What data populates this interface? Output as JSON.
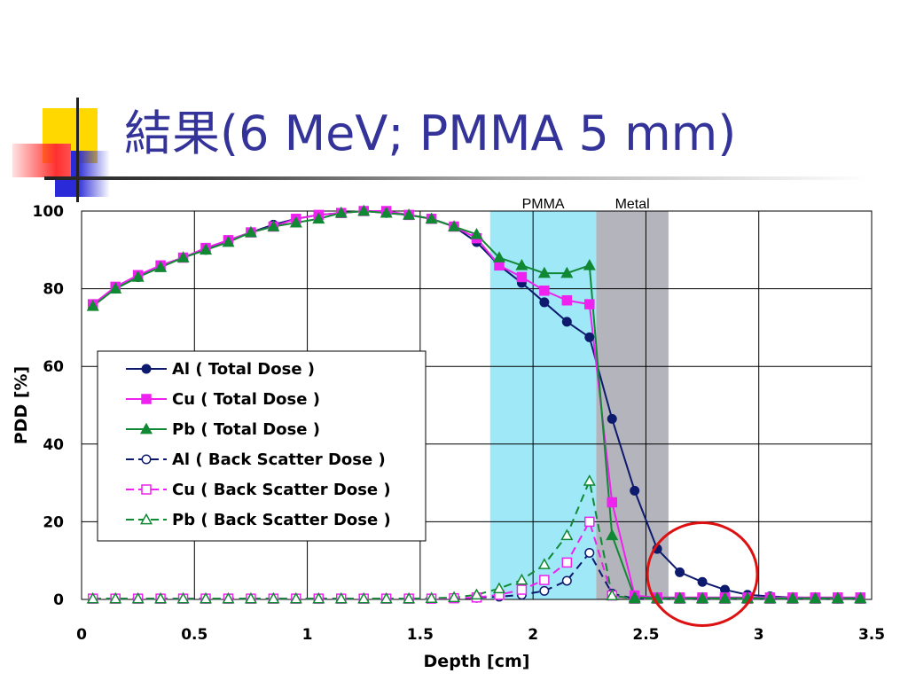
{
  "slide": {
    "title": "結果(6 MeV; PMMA 5 mm)"
  },
  "chart_data": {
    "type": "line",
    "xlabel": "Depth [cm]",
    "ylabel": "PDD [%]",
    "xlim": [
      0,
      3.5
    ],
    "ylim": [
      0,
      100
    ],
    "x_ticks": [
      "0",
      "0.5",
      "1",
      "1.5",
      "2",
      "2.5",
      "3",
      "3.5"
    ],
    "y_ticks": [
      "0",
      "20",
      "40",
      "60",
      "80",
      "100"
    ],
    "grid": true,
    "legend_position": "left-middle",
    "bands": [
      {
        "label": "PMMA",
        "x_start": 1.81,
        "x_end": 2.28,
        "color": "#9ee8f8"
      },
      {
        "label": "Metal",
        "x_start": 2.28,
        "x_end": 2.6,
        "color": "#b4b4bc"
      }
    ],
    "annotation": {
      "type": "circle",
      "color": "#dd1111"
    },
    "series": [
      {
        "name": "Al ( Total Dose )",
        "color": "#0d1a6e",
        "marker": "circle",
        "filled": true,
        "dash": false,
        "x": [
          0.05,
          0.15,
          0.25,
          0.35,
          0.45,
          0.55,
          0.65,
          0.75,
          0.85,
          0.95,
          1.05,
          1.15,
          1.25,
          1.35,
          1.45,
          1.55,
          1.65,
          1.75,
          1.85,
          1.95,
          2.05,
          2.15,
          2.25,
          2.35,
          2.45,
          2.55,
          2.65,
          2.75,
          2.85,
          2.95,
          3.05,
          3.15,
          3.25,
          3.35,
          3.45
        ],
        "y": [
          76,
          80,
          83,
          86,
          88,
          90,
          92.5,
          94.5,
          96.5,
          98,
          99,
          99.5,
          100,
          99.5,
          99,
          98,
          96,
          92,
          86,
          81.5,
          76.5,
          71.5,
          67.5,
          46.5,
          28,
          13,
          7,
          4.5,
          2.5,
          1.2,
          0.8,
          0.5,
          0.4,
          0.3,
          0.3
        ]
      },
      {
        "name": "Cu ( Total Dose )",
        "color": "#ee22ee",
        "marker": "square",
        "filled": true,
        "dash": false,
        "x": [
          0.05,
          0.15,
          0.25,
          0.35,
          0.45,
          0.55,
          0.65,
          0.75,
          0.85,
          0.95,
          1.05,
          1.15,
          1.25,
          1.35,
          1.45,
          1.55,
          1.65,
          1.75,
          1.85,
          1.95,
          2.05,
          2.15,
          2.25,
          2.35,
          2.45,
          2.55,
          2.65,
          2.75,
          2.85,
          2.95,
          3.05,
          3.15,
          3.25,
          3.35,
          3.45
        ],
        "y": [
          76,
          80.5,
          83.5,
          86,
          88,
          90.5,
          92.5,
          94.5,
          96,
          98,
          99,
          99.5,
          100,
          100,
          99,
          98,
          96,
          93,
          86,
          83,
          79.5,
          77,
          76,
          25,
          1,
          0.5,
          0.5,
          0.5,
          0.5,
          0.5,
          0.5,
          0.5,
          0.5,
          0.5,
          0.5
        ]
      },
      {
        "name": "Pb ( Total Dose )",
        "color": "#118833",
        "marker": "triangle",
        "filled": true,
        "dash": false,
        "x": [
          0.05,
          0.15,
          0.25,
          0.35,
          0.45,
          0.55,
          0.65,
          0.75,
          0.85,
          0.95,
          1.05,
          1.15,
          1.25,
          1.35,
          1.45,
          1.55,
          1.65,
          1.75,
          1.85,
          1.95,
          2.05,
          2.15,
          2.25,
          2.35,
          2.45,
          2.55,
          2.65,
          2.75,
          2.85,
          2.95,
          3.05,
          3.15,
          3.25,
          3.35,
          3.45
        ],
        "y": [
          75.5,
          80,
          83,
          85.5,
          88,
          90,
          92,
          94.5,
          96,
          97,
          98,
          99.5,
          100,
          99.5,
          99,
          98,
          96,
          94,
          88,
          86,
          84,
          84,
          86,
          16.5,
          0.5,
          0.3,
          0.3,
          0.3,
          0.3,
          0.3,
          0.3,
          0.3,
          0.3,
          0.3,
          0.3
        ]
      },
      {
        "name": "Al ( Back Scatter Dose )",
        "color": "#0d1a6e",
        "marker": "circle",
        "filled": false,
        "dash": true,
        "x": [
          0.05,
          0.15,
          0.25,
          0.35,
          0.45,
          0.55,
          0.65,
          0.75,
          0.85,
          0.95,
          1.05,
          1.15,
          1.25,
          1.35,
          1.45,
          1.55,
          1.65,
          1.75,
          1.85,
          1.95,
          2.05,
          2.15,
          2.25,
          2.35,
          2.45,
          2.55,
          2.65,
          2.75,
          2.85,
          2.95,
          3.05,
          3.15,
          3.25,
          3.35,
          3.45
        ],
        "y": [
          0.2,
          0.2,
          0.2,
          0.2,
          0.2,
          0.2,
          0.2,
          0.2,
          0.2,
          0.2,
          0.2,
          0.2,
          0.2,
          0.2,
          0.2,
          0.2,
          0.3,
          0.4,
          0.7,
          1.2,
          2.2,
          4.8,
          12,
          1.5,
          0.2,
          0.2,
          0.2,
          0.2,
          0.2,
          0.2,
          0.2,
          0.2,
          0.2,
          0.2,
          0.2
        ]
      },
      {
        "name": "Cu ( Back Scatter Dose )",
        "color": "#ee22ee",
        "marker": "square",
        "filled": false,
        "dash": true,
        "x": [
          0.05,
          0.15,
          0.25,
          0.35,
          0.45,
          0.55,
          0.65,
          0.75,
          0.85,
          0.95,
          1.05,
          1.15,
          1.25,
          1.35,
          1.45,
          1.55,
          1.65,
          1.75,
          1.85,
          1.95,
          2.05,
          2.15,
          2.25,
          2.35,
          2.45,
          2.55,
          2.65,
          2.75,
          2.85,
          2.95,
          3.05,
          3.15,
          3.25,
          3.35,
          3.45
        ],
        "y": [
          0.2,
          0.2,
          0.2,
          0.2,
          0.2,
          0.2,
          0.2,
          0.2,
          0.2,
          0.2,
          0.2,
          0.2,
          0.2,
          0.2,
          0.2,
          0.2,
          0.3,
          0.5,
          1.2,
          2.5,
          5,
          9.5,
          20,
          1,
          0.2,
          0.2,
          0.2,
          0.2,
          0.2,
          0.2,
          0.2,
          0.2,
          0.2,
          0.2,
          0.2
        ]
      },
      {
        "name": "Pb ( Back Scatter Dose )",
        "color": "#118833",
        "marker": "triangle",
        "filled": false,
        "dash": true,
        "x": [
          0.05,
          0.15,
          0.25,
          0.35,
          0.45,
          0.55,
          0.65,
          0.75,
          0.85,
          0.95,
          1.05,
          1.15,
          1.25,
          1.35,
          1.45,
          1.55,
          1.65,
          1.75,
          1.85,
          1.95,
          2.05,
          2.15,
          2.25,
          2.35,
          2.45,
          2.55,
          2.65,
          2.75,
          2.85,
          2.95,
          3.05,
          3.15,
          3.25,
          3.35,
          3.45
        ],
        "y": [
          0.2,
          0.2,
          0.2,
          0.2,
          0.2,
          0.2,
          0.2,
          0.2,
          0.2,
          0.2,
          0.2,
          0.2,
          0.2,
          0.2,
          0.2,
          0.3,
          0.5,
          1.2,
          2.8,
          5,
          9,
          16.5,
          30.5,
          1,
          0.2,
          0.2,
          0.2,
          0.2,
          0.2,
          0.2,
          0.2,
          0.2,
          0.2,
          0.2,
          0.2
        ]
      }
    ]
  }
}
